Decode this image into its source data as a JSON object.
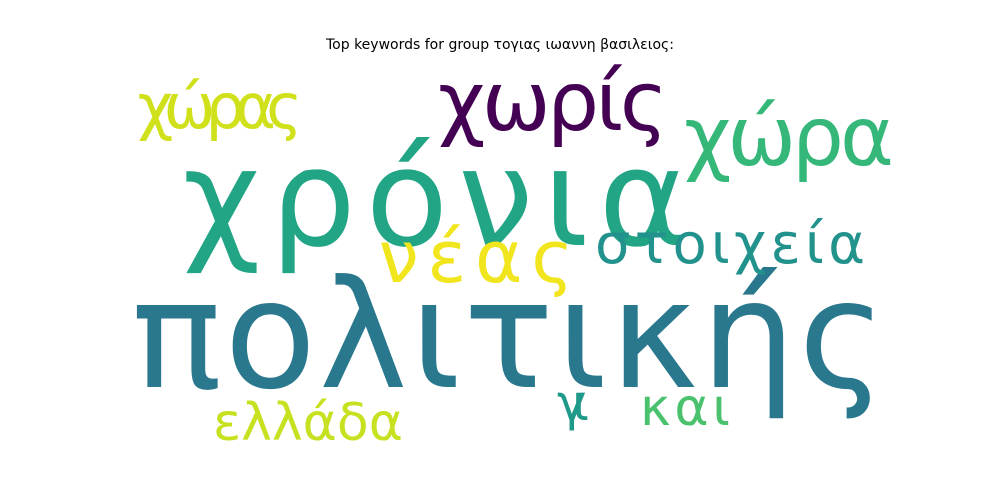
{
  "chart_data": {
    "type": "wordcloud",
    "title": "Top keywords for group τογιας ιωαννη βασιλειος:",
    "words": [
      {
        "text": "πολιτικής",
        "color": "#2a788e"
      },
      {
        "text": "χρόνια",
        "color": "#21a585"
      },
      {
        "text": "χωρίς",
        "color": "#440154"
      },
      {
        "text": "χώρα",
        "color": "#35b779"
      },
      {
        "text": "χώρας",
        "color": "#d0e11c"
      },
      {
        "text": "νέας",
        "color": "#f1e51d"
      },
      {
        "text": "στοιχεία",
        "color": "#22928c"
      },
      {
        "text": "ελλάδα",
        "color": "#c7e020"
      },
      {
        "text": "γι",
        "color": "#1f9a8a"
      },
      {
        "text": "και",
        "color": "#4ac16d"
      }
    ]
  }
}
